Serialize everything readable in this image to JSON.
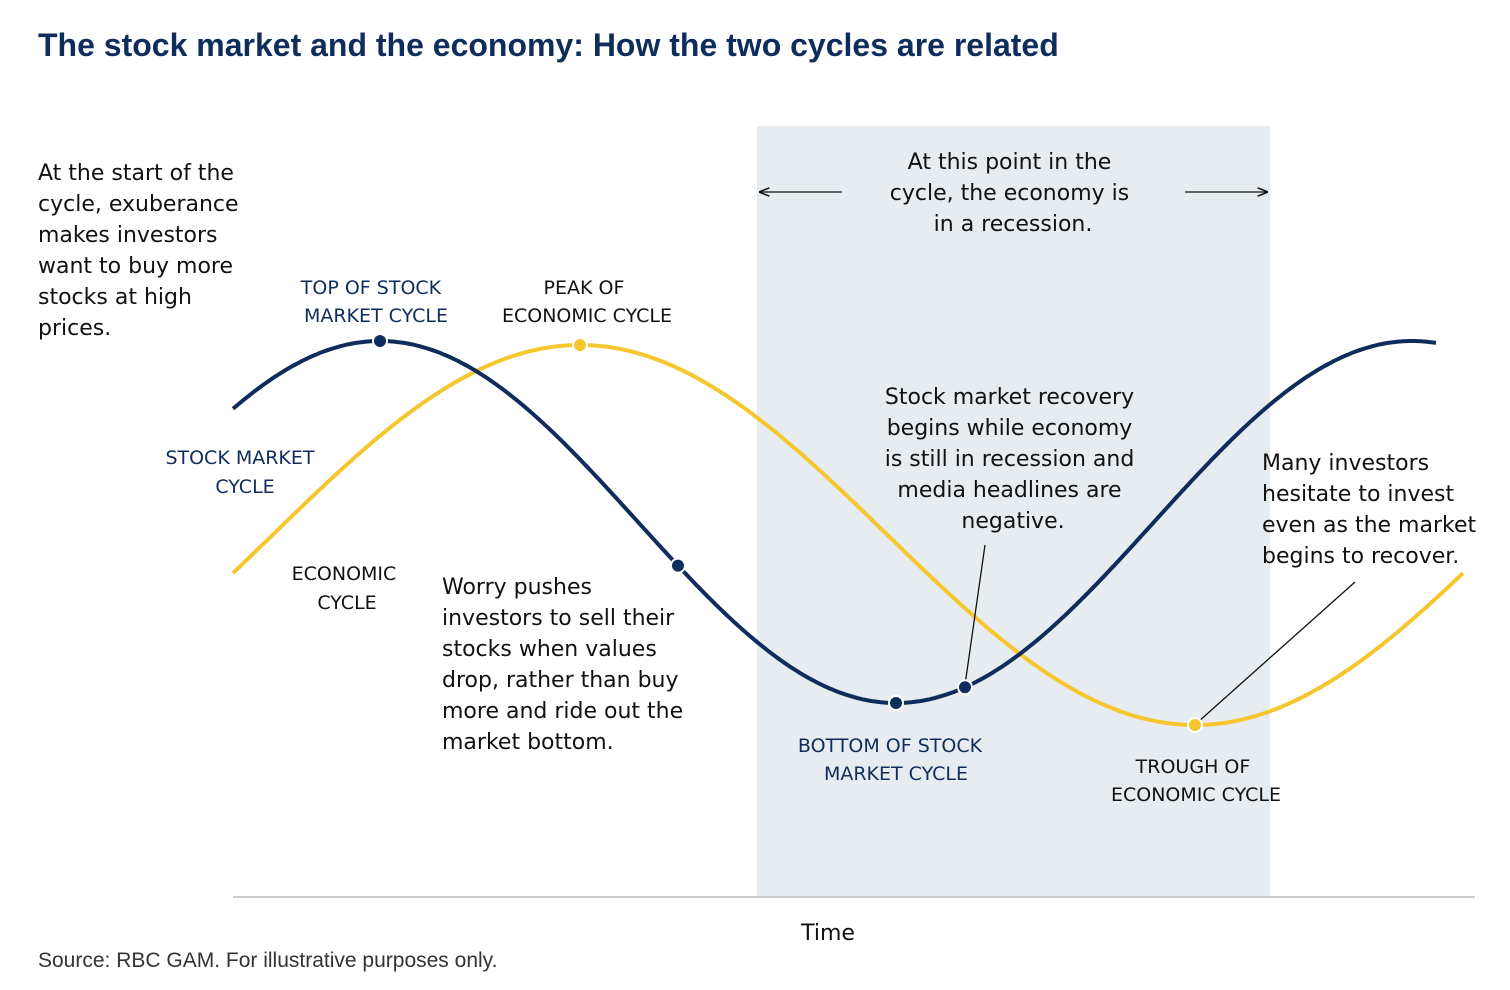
{
  "header": {
    "title": "The stock market and the economy: How the two cycles are related"
  },
  "annotations": {
    "start": [
      "At the start of the",
      "cycle, exuberance",
      "makes investors",
      "want to buy more",
      "stocks at high",
      "prices."
    ],
    "recession": [
      "At this point in the",
      "cycle, the economy is",
      "in a recession."
    ],
    "worry": [
      "Worry pushes",
      "investors to sell their",
      "stocks when values",
      "drop, rather than buy",
      "more and ride out the",
      "market bottom."
    ],
    "recovery": [
      "Stock market recovery",
      "begins while economy",
      "is still in recession and",
      "media headlines are",
      "negative."
    ],
    "hesitate": [
      "Many investors",
      "hesitate to invest",
      "even as the market",
      "begins to recover."
    ]
  },
  "labels": {
    "top_stock": [
      "TOP OF STOCK",
      "MARKET CYCLE"
    ],
    "peak_economic": [
      "PEAK OF",
      "ECONOMIC CYCLE"
    ],
    "stock_cycle": [
      "STOCK MARKET",
      "CYCLE"
    ],
    "economic_cycle": [
      "ECONOMIC",
      "CYCLE"
    ],
    "bottom_stock": [
      "BOTTOM OF STOCK",
      "MARKET CYCLE"
    ],
    "trough_economic": [
      "TROUGH OF",
      "ECONOMIC CYCLE"
    ]
  },
  "axis": {
    "x_label": "Time"
  },
  "footer": {
    "source": "Source: RBC GAM. For illustrative purposes only."
  }
}
